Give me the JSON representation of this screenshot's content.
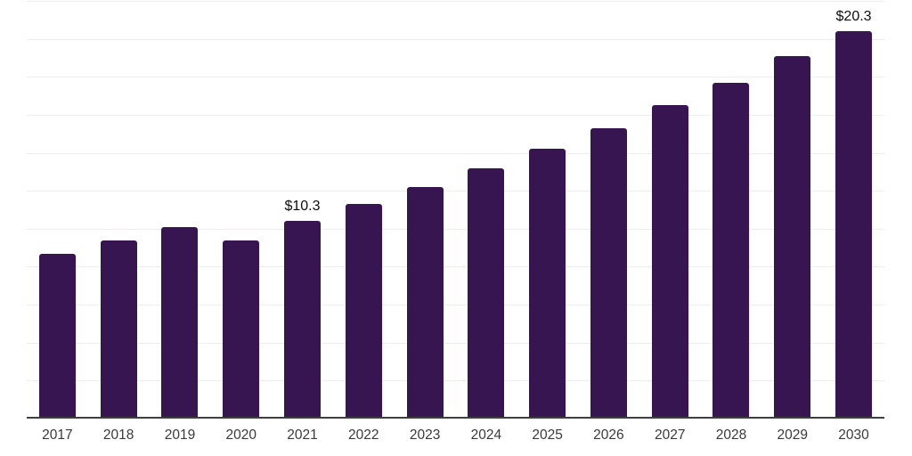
{
  "chart": {
    "background_color": "#ffffff",
    "bar_color": "#371551",
    "grid_color": "#ededed",
    "axis_color": "#3f3f3f",
    "tick_label_color": "#3a3a3a",
    "data_label_color": "#0d0d0d"
  },
  "chart_data": {
    "type": "bar",
    "title": "",
    "xlabel": "",
    "ylabel": "",
    "categories": [
      "2017",
      "2018",
      "2019",
      "2020",
      "2021",
      "2022",
      "2023",
      "2024",
      "2025",
      "2026",
      "2027",
      "2028",
      "2029",
      "2030"
    ],
    "values": [
      8.6,
      9.3,
      10.0,
      9.3,
      10.3,
      11.2,
      12.1,
      13.1,
      14.1,
      15.2,
      16.4,
      17.6,
      19.0,
      20.3
    ],
    "data_labels": {
      "2021": "$10.3",
      "2030": "$20.3"
    },
    "ylim": [
      0,
      22
    ],
    "gridline_step": 2,
    "grid": true,
    "legend": false,
    "y_tick_labels_visible": false,
    "currency_prefix": "$"
  }
}
